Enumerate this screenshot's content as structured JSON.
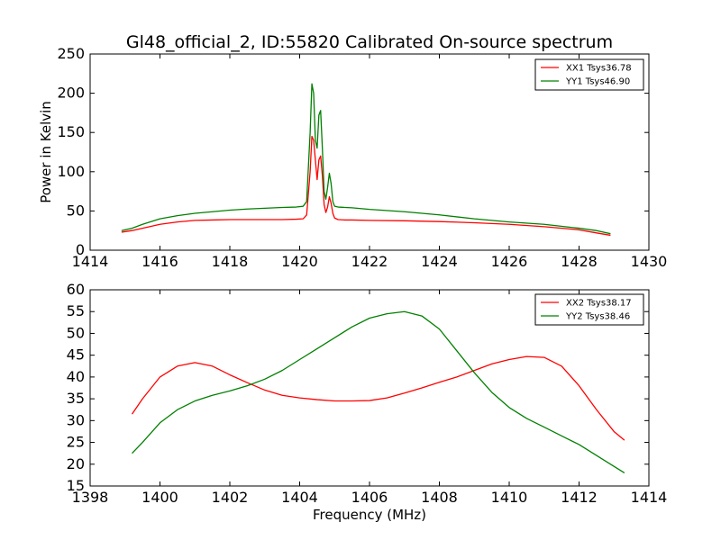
{
  "chart_data": [
    {
      "type": "line",
      "title": "Gl48_official_2, ID:55820 Calibrated On-source spectrum",
      "xlabel": "",
      "ylabel": "Power in Kelvin",
      "xlim": [
        1414,
        1430
      ],
      "ylim": [
        0,
        250
      ],
      "xticks": [
        "1414",
        "1416",
        "1418",
        "1420",
        "1422",
        "1424",
        "1426",
        "1428",
        "1430"
      ],
      "yticks": [
        "0",
        "50",
        "100",
        "150",
        "200",
        "250"
      ],
      "grid": false,
      "legend_position": "top-right",
      "series": [
        {
          "name": "XX1 Tsys36.78",
          "color": "#ff0000",
          "x": [
            1414.9,
            1415.2,
            1415.5,
            1416,
            1416.5,
            1417,
            1417.5,
            1418,
            1418.5,
            1419,
            1419.5,
            1419.9,
            1420.1,
            1420.2,
            1420.3,
            1420.35,
            1420.4,
            1420.45,
            1420.5,
            1420.55,
            1420.6,
            1420.65,
            1420.7,
            1420.75,
            1420.8,
            1420.85,
            1420.9,
            1420.95,
            1421.0,
            1421.1,
            1421.3,
            1421.5,
            1422,
            1423,
            1424,
            1425,
            1426,
            1427,
            1428,
            1428.5,
            1428.9
          ],
          "y": [
            23,
            25,
            28,
            33,
            36,
            38,
            38.5,
            39,
            39,
            39,
            39,
            39.5,
            40,
            45,
            100,
            145,
            140,
            115,
            90,
            115,
            120,
            95,
            58,
            48,
            55,
            68,
            60,
            47,
            41,
            39,
            38.5,
            38.5,
            38,
            37.5,
            36.5,
            35,
            33,
            30,
            26,
            22,
            19
          ]
        },
        {
          "name": "YY1 Tsys46.90",
          "color": "#008000",
          "x": [
            1414.9,
            1415.2,
            1415.5,
            1416,
            1416.5,
            1417,
            1417.5,
            1418,
            1418.5,
            1419,
            1419.5,
            1419.9,
            1420.1,
            1420.2,
            1420.3,
            1420.35,
            1420.4,
            1420.45,
            1420.5,
            1420.55,
            1420.6,
            1420.65,
            1420.7,
            1420.75,
            1420.8,
            1420.85,
            1420.9,
            1420.95,
            1421.0,
            1421.1,
            1421.3,
            1421.5,
            1422,
            1423,
            1424,
            1425,
            1426,
            1427,
            1428,
            1428.5,
            1428.9
          ],
          "y": [
            25,
            28,
            33,
            40,
            44,
            47,
            49,
            51,
            52.5,
            53.5,
            54.5,
            55,
            56,
            62,
            150,
            212,
            200,
            140,
            130,
            172,
            178,
            130,
            75,
            65,
            80,
            98,
            85,
            62,
            56,
            55,
            54.5,
            54,
            52,
            49,
            45,
            40,
            36,
            33,
            28,
            25,
            21
          ]
        }
      ]
    },
    {
      "type": "line",
      "title": "",
      "xlabel": "Frequency (MHz)",
      "ylabel": "",
      "xlim": [
        1398,
        1414
      ],
      "ylim": [
        15,
        60
      ],
      "xticks": [
        "1398",
        "1400",
        "1402",
        "1404",
        "1406",
        "1408",
        "1410",
        "1412",
        "1414"
      ],
      "yticks": [
        "15",
        "20",
        "25",
        "30",
        "35",
        "40",
        "45",
        "50",
        "55",
        "60"
      ],
      "grid": false,
      "legend_position": "top-right",
      "series": [
        {
          "name": "XX2 Tsys38.17",
          "color": "#ff0000",
          "x": [
            1399.2,
            1399.5,
            1400.0,
            1400.5,
            1401.0,
            1401.5,
            1402.0,
            1402.5,
            1403.0,
            1403.5,
            1404.0,
            1404.5,
            1405.0,
            1405.5,
            1406.0,
            1406.5,
            1407.0,
            1407.5,
            1408.0,
            1408.5,
            1409.0,
            1409.5,
            1410.0,
            1410.5,
            1411.0,
            1411.5,
            1412.0,
            1412.5,
            1413.0,
            1413.3
          ],
          "y": [
            31.5,
            35,
            40,
            42.5,
            43.3,
            42.5,
            40.5,
            38.7,
            37,
            35.8,
            35.2,
            34.8,
            34.5,
            34.5,
            34.6,
            35.2,
            36.3,
            37.5,
            38.8,
            40,
            41.5,
            43,
            44,
            44.7,
            44.5,
            42.5,
            38,
            32.5,
            27.5,
            25.5
          ]
        },
        {
          "name": "YY2 Tsys38.46",
          "color": "#008000",
          "x": [
            1399.2,
            1399.5,
            1400.0,
            1400.5,
            1401.0,
            1401.5,
            1402.0,
            1402.5,
            1403.0,
            1403.5,
            1404.0,
            1404.5,
            1405.0,
            1405.5,
            1406.0,
            1406.5,
            1407.0,
            1407.5,
            1408.0,
            1408.5,
            1409.0,
            1409.5,
            1410.0,
            1410.5,
            1411.0,
            1411.5,
            1412.0,
            1412.5,
            1413.0,
            1413.3
          ],
          "y": [
            22.5,
            25,
            29.5,
            32.5,
            34.5,
            35.8,
            36.8,
            38,
            39.5,
            41.5,
            44,
            46.5,
            49,
            51.5,
            53.5,
            54.5,
            55,
            54,
            51,
            46,
            41,
            36.5,
            33,
            30.5,
            28.5,
            26.5,
            24.5,
            22,
            19.5,
            18
          ]
        }
      ]
    }
  ]
}
